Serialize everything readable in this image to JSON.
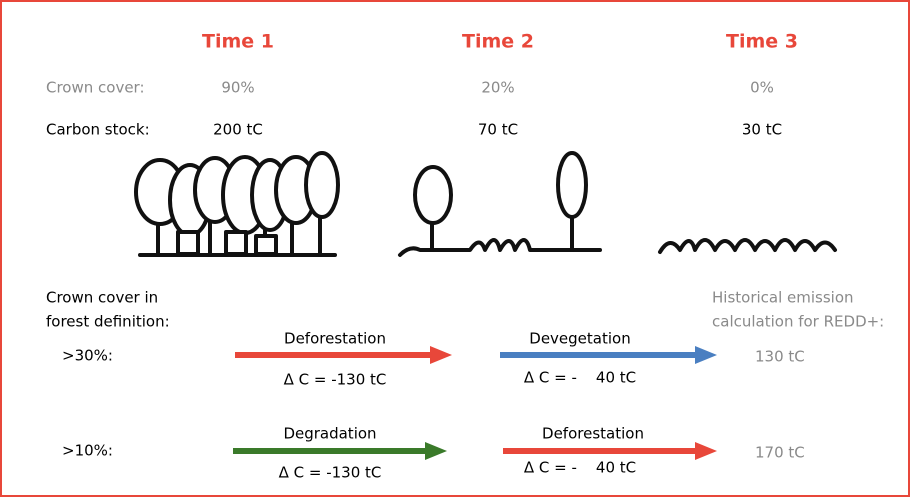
{
  "times": [
    "Time 1",
    "Time 2",
    "Time 3"
  ],
  "crown_cover": {
    "label": "Crown cover:",
    "values": [
      "90%",
      "20%",
      "0%"
    ]
  },
  "carbon_stock": {
    "label": "Carbon stock:",
    "values": [
      "200 tC",
      "70 tC",
      "30 tC"
    ]
  },
  "definition_label": [
    "Crown cover in",
    "forest definition:"
  ],
  "historical_label": [
    "Historical emission",
    "calculation for REDD+:"
  ],
  "rows": [
    {
      "threshold": ">30%:",
      "steps": [
        {
          "name": "Deforestation",
          "delta": "Δ C = -130 tC"
        },
        {
          "name": "Devegetation",
          "delta": "Δ C = -    40 tC"
        }
      ],
      "result": "130 tC"
    },
    {
      "threshold": ">10%:",
      "steps": [
        {
          "name": "Degradation",
          "delta": "Δ C = -130 tC"
        },
        {
          "name": "Deforestation",
          "delta": "Δ C = -    40 tC"
        }
      ],
      "result": "170 tC"
    }
  ]
}
